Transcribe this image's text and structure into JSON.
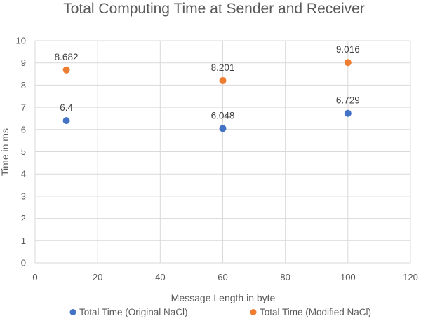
{
  "chart_data": {
    "type": "scatter",
    "title": "Total Computing Time at Sender and Receiver",
    "xlabel": "Message Length in byte",
    "ylabel": "Time in ms",
    "xlim": [
      0,
      120
    ],
    "ylim": [
      0,
      10
    ],
    "xticks": [
      0,
      20,
      40,
      60,
      80,
      100,
      120
    ],
    "yticks": [
      0,
      1,
      2,
      3,
      4,
      5,
      6,
      7,
      8,
      9,
      10
    ],
    "grid": true,
    "legend_position": "bottom",
    "series": [
      {
        "name": "Total Time (Original NaCl)",
        "color": "#4472c4",
        "points": [
          {
            "x": 10,
            "y": 6.4,
            "label": "6.4"
          },
          {
            "x": 60,
            "y": 6.048,
            "label": "6.048"
          },
          {
            "x": 100,
            "y": 6.729,
            "label": "6.729"
          }
        ]
      },
      {
        "name": "Total Time (Modified NaCl)",
        "color": "#ed7d31",
        "points": [
          {
            "x": 10,
            "y": 8.682,
            "label": "8.682"
          },
          {
            "x": 60,
            "y": 8.201,
            "label": "8.201"
          },
          {
            "x": 100,
            "y": 9.016,
            "label": "9.016"
          }
        ]
      }
    ]
  }
}
